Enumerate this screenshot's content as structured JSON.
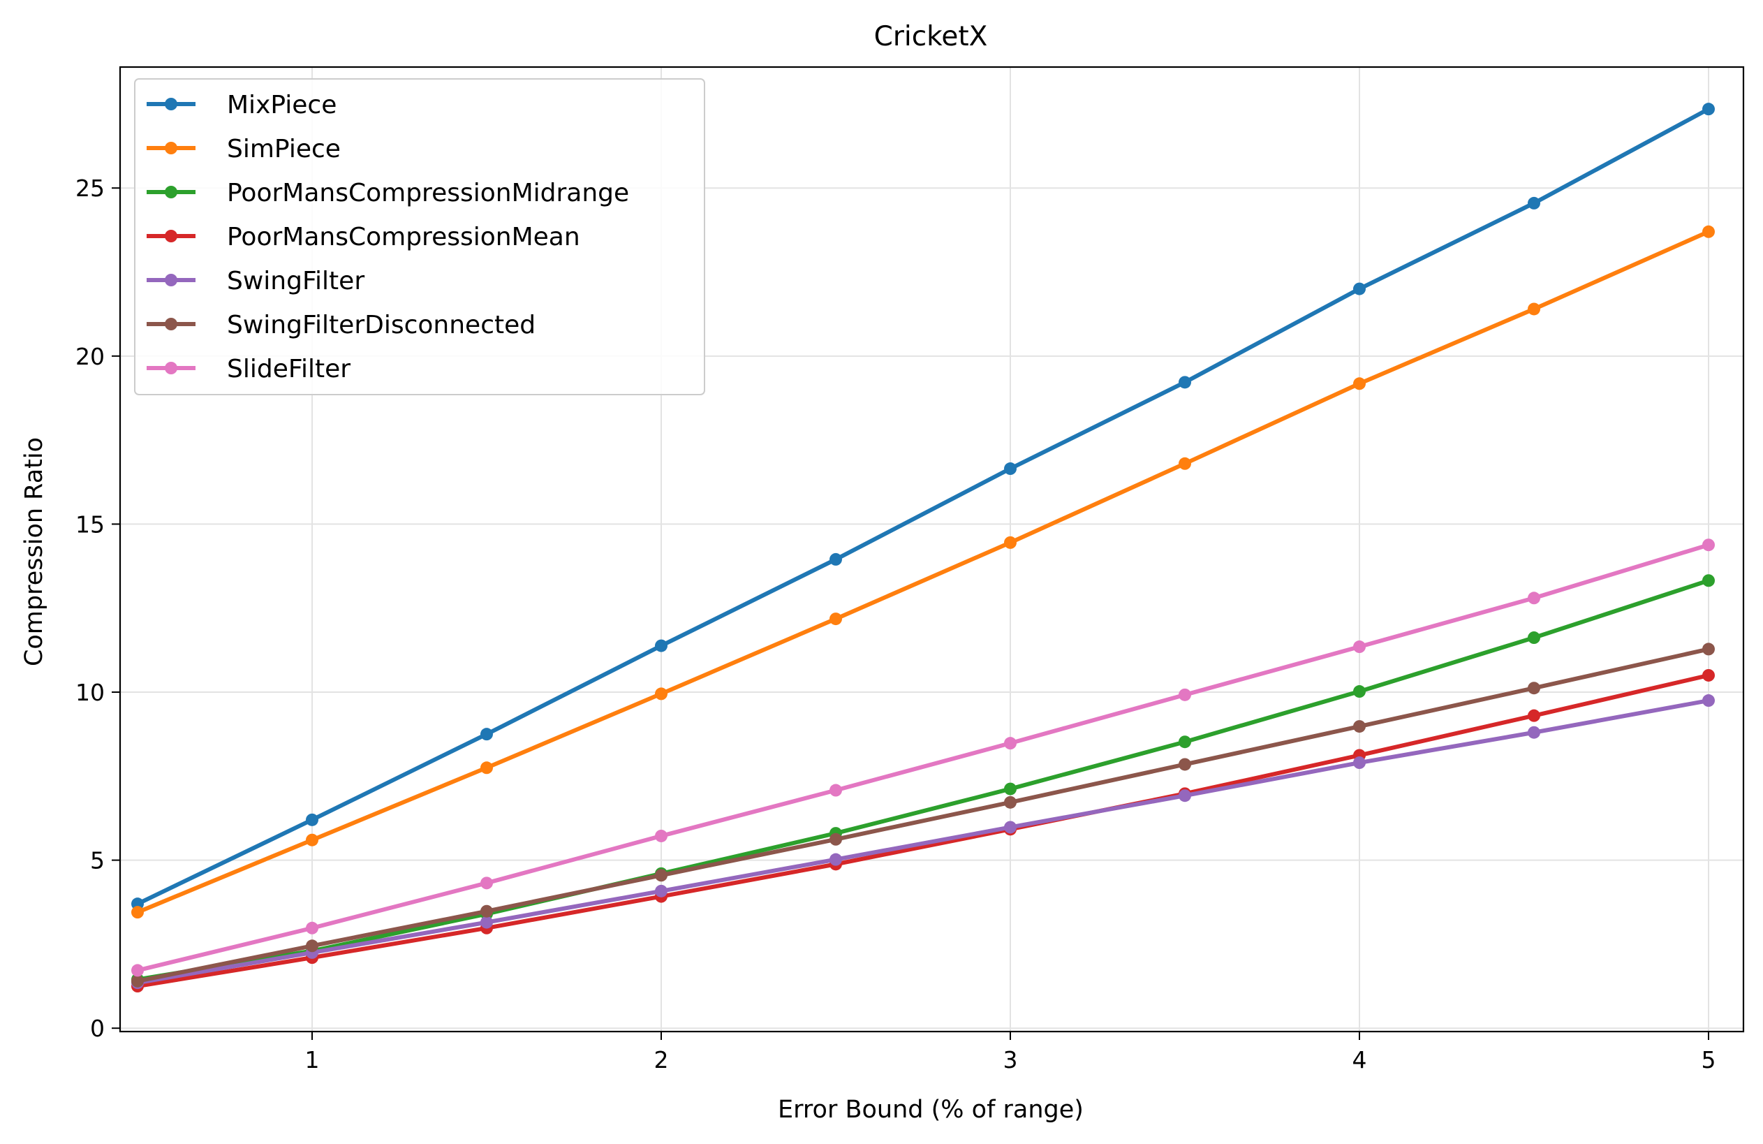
{
  "chart_data": {
    "type": "line",
    "title": "CricketX",
    "xlabel": "Error Bound (% of range)",
    "ylabel": "Compression Ratio",
    "xlim": [
      0.45,
      5.1
    ],
    "ylim": [
      -0.1,
      28.6
    ],
    "xticks": [
      1,
      2,
      3,
      4,
      5
    ],
    "yticks": [
      0,
      5,
      10,
      15,
      20,
      25
    ],
    "grid": true,
    "legend_position": "top-left",
    "x": [
      0.5,
      1.0,
      1.5,
      2.0,
      2.5,
      3.0,
      3.5,
      4.0,
      4.5,
      5.0
    ],
    "series": [
      {
        "name": "MixPiece",
        "color": "#1f77b4",
        "values": [
          3.7,
          6.2,
          8.75,
          11.38,
          13.95,
          16.65,
          19.22,
          22.0,
          24.55,
          27.35
        ]
      },
      {
        "name": "SimPiece",
        "color": "#ff7f0e",
        "values": [
          3.45,
          5.6,
          7.75,
          9.95,
          12.18,
          14.45,
          16.8,
          19.18,
          21.4,
          23.7
        ]
      },
      {
        "name": "PoorMansCompressionMidrange",
        "color": "#2ca02c",
        "values": [
          1.45,
          2.3,
          3.4,
          4.6,
          5.8,
          7.12,
          8.52,
          10.02,
          11.62,
          13.32
        ]
      },
      {
        "name": "PoorMansCompressionMean",
        "color": "#d62728",
        "values": [
          1.25,
          2.1,
          2.98,
          3.92,
          4.88,
          5.92,
          6.98,
          8.12,
          9.3,
          10.5
        ]
      },
      {
        "name": "SwingFilter",
        "color": "#9467bd",
        "values": [
          1.35,
          2.25,
          3.15,
          4.08,
          5.02,
          5.98,
          6.92,
          7.9,
          8.8,
          9.75
        ]
      },
      {
        "name": "SwingFilterDisconnected",
        "color": "#8c564b",
        "values": [
          1.4,
          2.45,
          3.48,
          4.55,
          5.62,
          6.72,
          7.85,
          8.98,
          10.12,
          11.28
        ]
      },
      {
        "name": "SlideFilter",
        "color": "#e377c2",
        "values": [
          1.72,
          2.98,
          4.32,
          5.72,
          7.08,
          8.48,
          9.92,
          11.35,
          12.8,
          14.38
        ]
      }
    ]
  }
}
